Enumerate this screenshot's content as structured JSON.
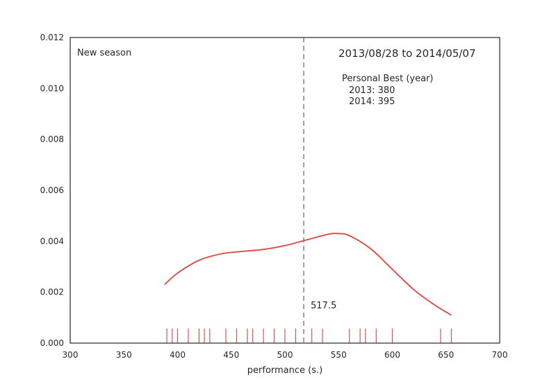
{
  "chart_data": {
    "type": "line",
    "title": "",
    "xlabel": "performance (s.)",
    "ylabel": "",
    "xlim": [
      300,
      700
    ],
    "ylim": [
      0,
      0.012
    ],
    "x_ticks": [
      "300",
      "350",
      "400",
      "450",
      "500",
      "550",
      "600",
      "650",
      "700"
    ],
    "y_ticks": [
      "0.000",
      "0.002",
      "0.004",
      "0.006",
      "0.008",
      "0.010",
      "0.012"
    ],
    "grid": false,
    "series": [
      {
        "type": "kde",
        "color": "#d9534f",
        "x": [
          388,
          400,
          420,
          440,
          460,
          480,
          500,
          520,
          540,
          550,
          560,
          580,
          600,
          620,
          640,
          655
        ],
        "y": [
          0.0023,
          0.00275,
          0.00325,
          0.0035,
          0.0036,
          0.00368,
          0.00383,
          0.00405,
          0.00427,
          0.0043,
          0.00422,
          0.0037,
          0.0029,
          0.0021,
          0.00148,
          0.0011
        ]
      }
    ],
    "rug": {
      "color": "#d9534f",
      "values": [
        390,
        395,
        400,
        410,
        420,
        425,
        430,
        445,
        455,
        465,
        470,
        480,
        490,
        500,
        510,
        525,
        535,
        560,
        570,
        575,
        585,
        600,
        645,
        655
      ]
    },
    "vline": {
      "x": 517.5,
      "label": "517.5",
      "color": "#808080",
      "style": "dashed"
    },
    "annotations": {
      "season": "New season",
      "date_range": "2013/08/28 to 2014/05/07",
      "pb_title": "Personal Best (year)",
      "pb_lines": [
        "2013: 380",
        "2014: 395"
      ]
    }
  }
}
